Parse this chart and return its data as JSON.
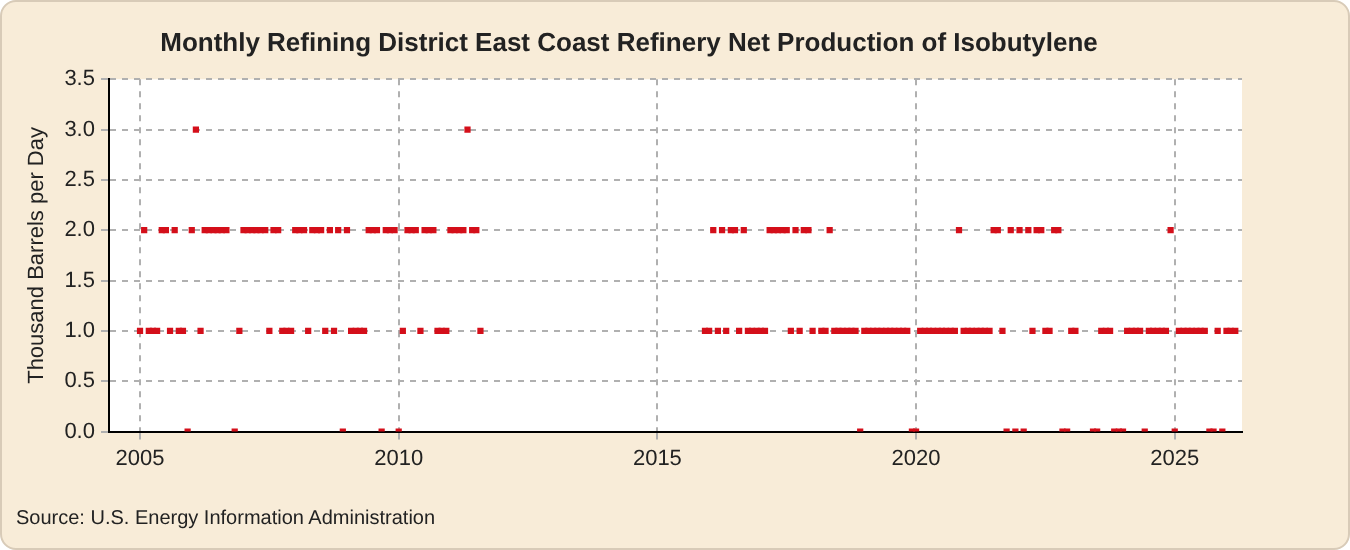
{
  "chart_data": {
    "type": "scatter",
    "title": "Monthly Refining District East Coast Refinery Net Production of Isobutylene",
    "ylabel": "Thousand Barrels per Day",
    "annotations": [
      "Source: U.S. Energy Information Administration"
    ],
    "xlim": [
      2004.4,
      2026.3
    ],
    "xticks": [
      2005,
      2010,
      2015,
      2020,
      2025
    ],
    "ylim": [
      0,
      3.5
    ],
    "yticks": [
      {
        "value": 0,
        "label": "0.0"
      },
      {
        "value": 0.5,
        "label": "0.5"
      },
      {
        "value": 1,
        "label": "1.0"
      },
      {
        "value": 1.5,
        "label": "1.5"
      },
      {
        "value": 2,
        "label": "2.0"
      },
      {
        "value": 2.5,
        "label": "2.5"
      },
      {
        "value": 3,
        "label": "3.0"
      },
      {
        "value": 3.5,
        "label": "3.5"
      }
    ],
    "grid": true,
    "legend": false,
    "marker": "square",
    "series": [
      {
        "color": "#d40f1a",
        "x": [
          2005.0,
          2005.08,
          2005.17,
          2005.25,
          2005.33,
          2005.42,
          2005.5,
          2005.58,
          2005.67,
          2005.75,
          2005.83,
          2005.92,
          2006.0,
          2006.08,
          2006.17,
          2006.25,
          2006.33,
          2006.42,
          2006.5,
          2006.58,
          2006.67,
          2006.75,
          2006.83,
          2006.92,
          2007.0,
          2007.08,
          2007.17,
          2007.25,
          2007.33,
          2007.42,
          2007.5,
          2007.58,
          2007.67,
          2007.75,
          2007.83,
          2007.92,
          2008.0,
          2008.08,
          2008.17,
          2008.25,
          2008.33,
          2008.42,
          2008.5,
          2008.58,
          2008.67,
          2008.75,
          2008.83,
          2008.92,
          2009.0,
          2009.08,
          2009.17,
          2009.25,
          2009.33,
          2009.42,
          2009.5,
          2009.58,
          2009.67,
          2009.75,
          2009.83,
          2009.92,
          2010.0,
          2010.08,
          2010.17,
          2010.25,
          2010.33,
          2010.42,
          2010.5,
          2010.58,
          2010.67,
          2010.75,
          2010.83,
          2010.92,
          2011.0,
          2011.08,
          2011.17,
          2011.25,
          2011.33,
          2011.42,
          2011.5,
          2011.58,
          2015.92,
          2016.0,
          2016.08,
          2016.17,
          2016.25,
          2016.33,
          2016.42,
          2016.5,
          2016.58,
          2016.67,
          2016.75,
          2016.83,
          2016.92,
          2017.0,
          2017.08,
          2017.17,
          2017.25,
          2017.33,
          2017.42,
          2017.5,
          2017.58,
          2017.67,
          2017.75,
          2017.83,
          2017.92,
          2018.0,
          2018.08,
          2018.17,
          2018.25,
          2018.33,
          2018.42,
          2018.5,
          2018.58,
          2018.67,
          2018.75,
          2018.83,
          2018.92,
          2019.0,
          2019.08,
          2019.17,
          2019.25,
          2019.33,
          2019.42,
          2019.5,
          2019.58,
          2019.67,
          2019.75,
          2019.83,
          2019.92,
          2020.0,
          2020.08,
          2020.17,
          2020.25,
          2020.33,
          2020.42,
          2020.5,
          2020.58,
          2020.67,
          2020.75,
          2020.83,
          2020.92,
          2021.0,
          2021.08,
          2021.17,
          2021.25,
          2021.33,
          2021.42,
          2021.5,
          2021.58,
          2021.67,
          2021.75,
          2021.83,
          2021.92,
          2022.0,
          2022.08,
          2022.17,
          2022.25,
          2022.33,
          2022.42,
          2022.5,
          2022.58,
          2022.67,
          2022.75,
          2022.83,
          2022.92,
          2023.0,
          2023.08,
          2023.17,
          2023.25,
          2023.33,
          2023.42,
          2023.5,
          2023.58,
          2023.67,
          2023.75,
          2023.83,
          2023.92,
          2024.0,
          2024.08,
          2024.17,
          2024.25,
          2024.33,
          2024.42,
          2024.5,
          2024.58,
          2024.67,
          2024.75,
          2024.83,
          2024.92,
          2025.0,
          2025.08,
          2025.17,
          2025.25,
          2025.33,
          2025.42,
          2025.5,
          2025.58,
          2025.67,
          2025.75,
          2025.83,
          2025.92,
          2026.0,
          2026.08,
          2026.17
        ],
        "values": [
          1,
          2,
          1,
          1,
          1,
          2,
          2,
          1,
          2,
          1,
          1,
          0,
          2,
          3,
          1,
          2,
          2,
          2,
          2,
          2,
          2,
          null,
          0,
          1,
          2,
          2,
          2,
          2,
          2,
          2,
          1,
          2,
          2,
          1,
          1,
          1,
          2,
          2,
          2,
          1,
          2,
          2,
          2,
          1,
          2,
          1,
          2,
          0,
          2,
          1,
          1,
          1,
          1,
          2,
          2,
          2,
          0,
          2,
          2,
          2,
          0,
          1,
          2,
          2,
          2,
          1,
          2,
          2,
          2,
          1,
          1,
          1,
          2,
          2,
          2,
          2,
          3,
          2,
          2,
          1,
          1,
          1,
          2,
          1,
          2,
          1,
          2,
          2,
          1,
          2,
          1,
          1,
          1,
          1,
          1,
          2,
          2,
          2,
          2,
          2,
          1,
          2,
          1,
          2,
          2,
          1,
          null,
          1,
          1,
          2,
          1,
          1,
          1,
          1,
          1,
          1,
          0,
          1,
          1,
          1,
          1,
          1,
          1,
          1,
          1,
          1,
          1,
          1,
          0,
          0,
          1,
          1,
          1,
          1,
          1,
          1,
          1,
          1,
          1,
          2,
          1,
          1,
          1,
          1,
          1,
          1,
          1,
          2,
          2,
          1,
          0,
          2,
          0,
          2,
          0,
          2,
          1,
          2,
          2,
          1,
          1,
          2,
          2,
          0,
          0,
          1,
          1,
          null,
          null,
          null,
          0,
          0,
          1,
          1,
          1,
          0,
          0,
          0,
          1,
          1,
          1,
          1,
          0,
          1,
          1,
          1,
          1,
          1,
          2,
          0,
          1,
          1,
          1,
          1,
          1,
          1,
          1,
          0,
          0,
          1,
          0,
          1,
          1,
          1
        ]
      }
    ]
  }
}
